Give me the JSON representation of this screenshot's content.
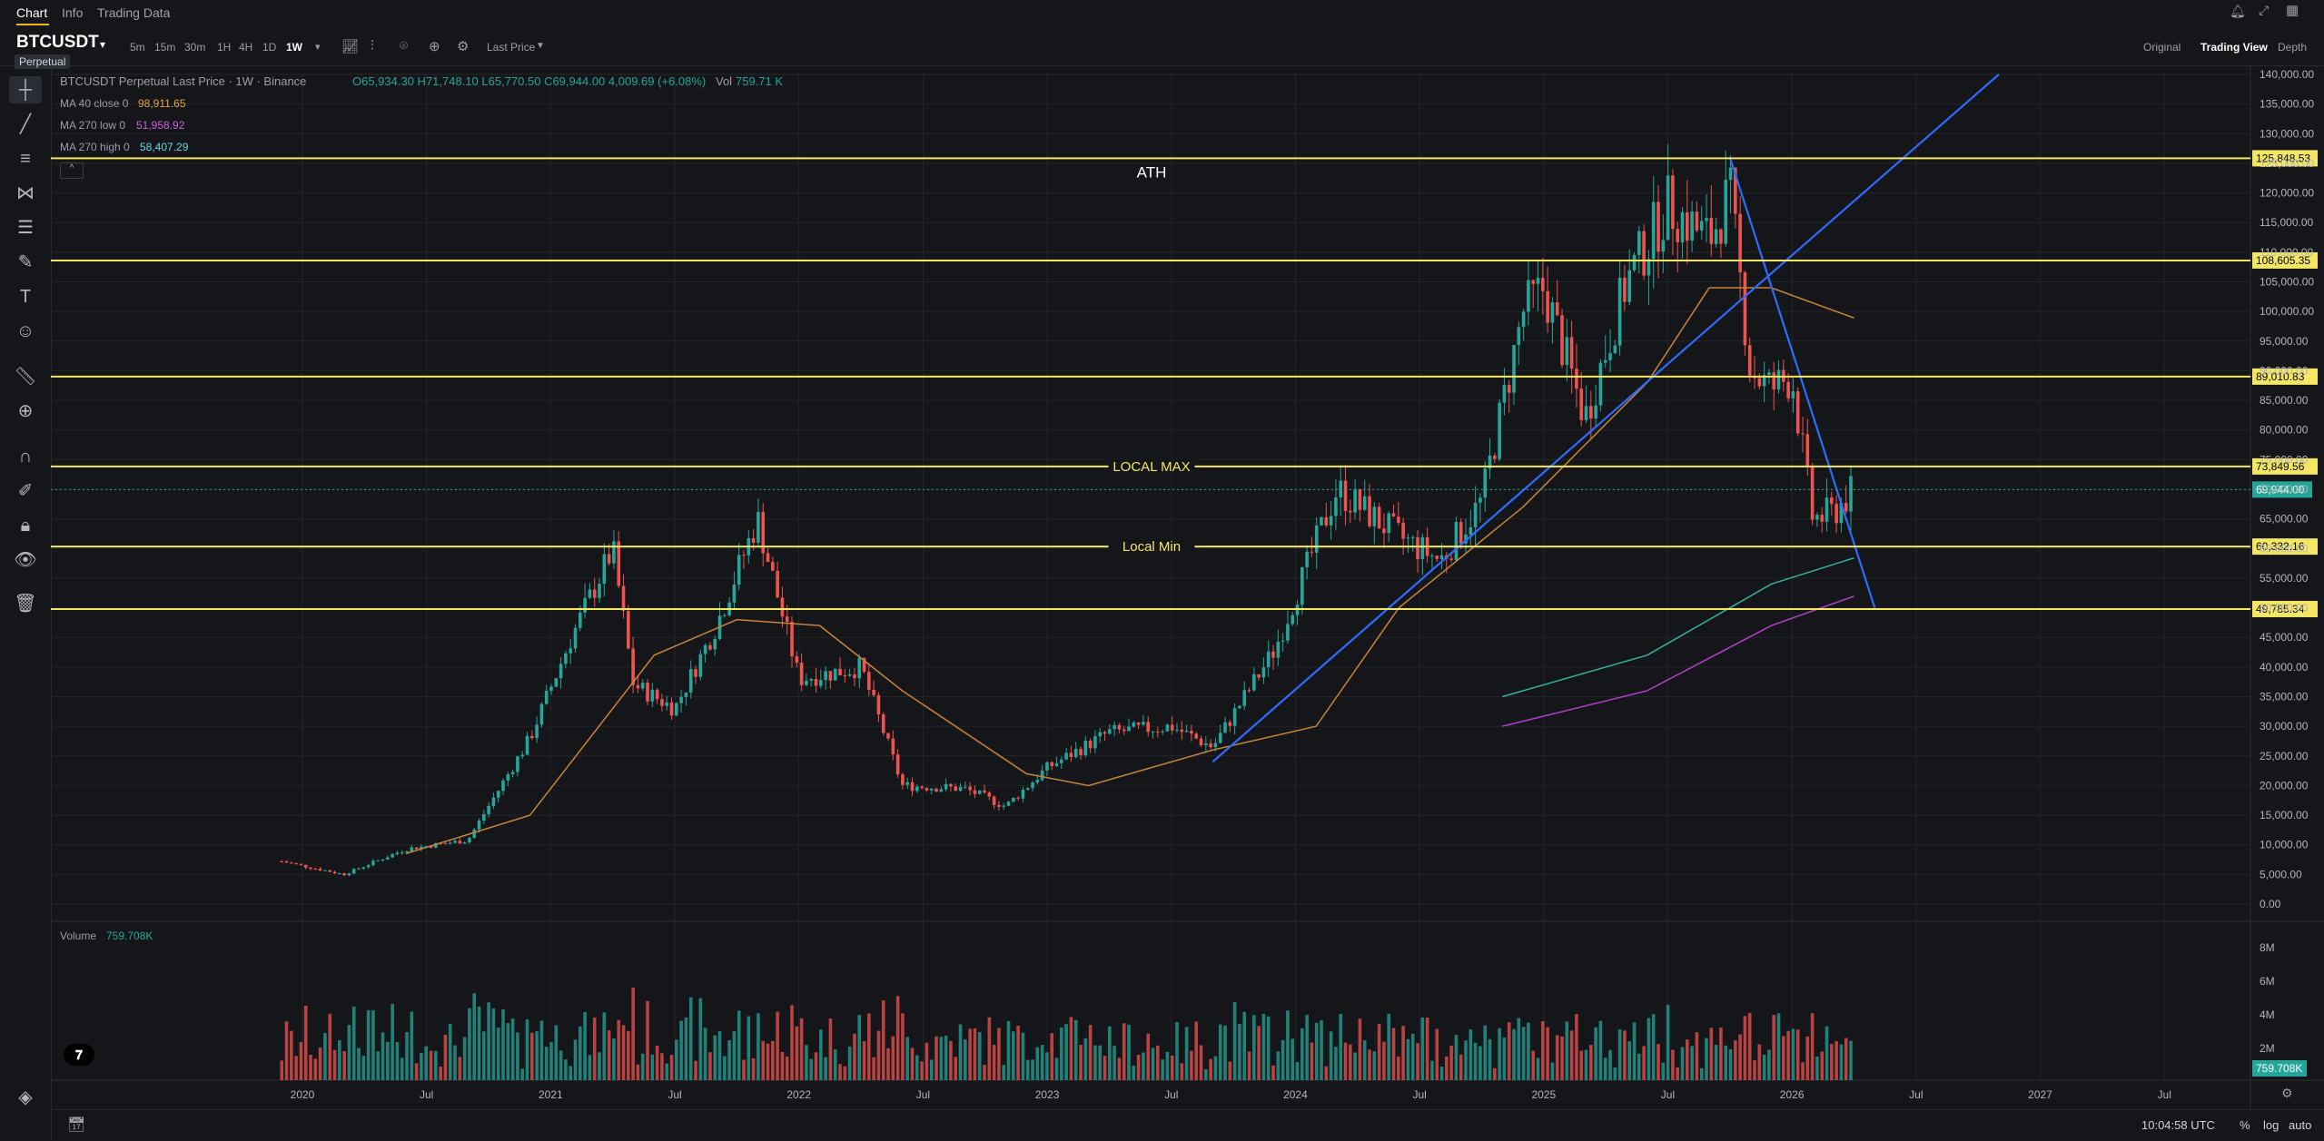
{
  "nav": {
    "tabs": [
      "Chart",
      "Info",
      "Trading Data"
    ]
  },
  "symbol": {
    "name": "BTCUSDT",
    "badge": "Perpetual"
  },
  "timeframes": [
    "5m",
    "15m",
    "30m",
    "1H",
    "4H",
    "1D",
    "1W"
  ],
  "active_timeframe": "1W",
  "price_type": "Last Price",
  "views": [
    "Original",
    "Trading View",
    "Depth"
  ],
  "legend": {
    "title": "BTCUSDT Perpetual Last Price · 1W · Binance",
    "ohlc": "O65,934.30 H71,748.10 L65,770.50 C69,944.00 4,009.69 (+6.08%)",
    "vol_label": "Vol",
    "vol_value": "759.71 K",
    "ma1_label": "MA 40 close 0",
    "ma1_value": "98,911.65",
    "ma2_label": "MA 270 low 0",
    "ma2_value": "51,958.92",
    "ma3_label": "MA 270 high 0",
    "ma3_value": "58,407.29",
    "volume_label": "Volume",
    "volume_value": "759.708K"
  },
  "colors": {
    "up": "#26a69a",
    "down": "#ef5350",
    "hline": "#f5e663",
    "trend": "#2f6bff",
    "ma40": "#c8843a",
    "ma270_high": "#34b3a0",
    "ma270_low": "#b040c8"
  },
  "chart_data": {
    "type": "candlestick",
    "y_ticks": [
      "0.00",
      "5,000.00",
      "10,000.00",
      "15,000.00",
      "20,000.00",
      "25,000.00",
      "30,000.00",
      "35,000.00",
      "40,000.00",
      "45,000.00",
      "50,000.00",
      "55,000.00",
      "60,000.00",
      "65,000.00",
      "70,000.00",
      "75,000.00",
      "80,000.00",
      "85,000.00",
      "90,000.00",
      "95,000.00",
      "100,000.00",
      "105,000.00",
      "110,000.00",
      "115,000.00",
      "120,000.00",
      "125,000.00",
      "130,000.00",
      "135,000.00",
      "140,000.00"
    ],
    "ylim": [
      0,
      140000
    ],
    "x_ticks": [
      "2020",
      "Jul",
      "2021",
      "Jul",
      "2022",
      "Jul",
      "2023",
      "Jul",
      "2024",
      "Jul",
      "2025",
      "Jul",
      "2026",
      "Jul",
      "2027",
      "Jul"
    ],
    "horizontal_levels": [
      {
        "price": 125848.53,
        "label": "125,848.53",
        "annotation": "ATH"
      },
      {
        "price": 108605.35,
        "label": "108,605.35",
        "annotation": ""
      },
      {
        "price": 89010.83,
        "label": "89,010.83",
        "annotation": ""
      },
      {
        "price": 73849.56,
        "label": "73,849.56",
        "annotation": "LOCAL MAX"
      },
      {
        "price": 60332.16,
        "label": "60,332.16",
        "annotation": "Local Min"
      },
      {
        "price": 49785.34,
        "label": "49,785.34",
        "annotation": ""
      }
    ],
    "last_price": {
      "price": 69944.0,
      "label": "69,944.00"
    },
    "close_path": [
      [
        "2019-12",
        7200
      ],
      [
        "2020-03",
        5000
      ],
      [
        "2020-06",
        9300
      ],
      [
        "2020-09",
        10800
      ],
      [
        "2020-12",
        28000
      ],
      [
        "2021-02",
        45000
      ],
      [
        "2021-04",
        60000
      ],
      [
        "2021-05",
        37000
      ],
      [
        "2021-07",
        33000
      ],
      [
        "2021-09",
        47000
      ],
      [
        "2021-11",
        65000
      ],
      [
        "2022-01",
        38000
      ],
      [
        "2022-04",
        40000
      ],
      [
        "2022-06",
        20000
      ],
      [
        "2022-09",
        19500
      ],
      [
        "2022-11",
        16500
      ],
      [
        "2023-01",
        23000
      ],
      [
        "2023-04",
        29000
      ],
      [
        "2023-07",
        30000
      ],
      [
        "2023-09",
        26500
      ],
      [
        "2023-12",
        43000
      ],
      [
        "2024-03",
        70000
      ],
      [
        "2024-06",
        62000
      ],
      [
        "2024-08",
        58000
      ],
      [
        "2024-10",
        68000
      ],
      [
        "2024-12",
        100000
      ],
      [
        "2025-01",
        104000
      ],
      [
        "2025-03",
        82000
      ],
      [
        "2025-05",
        105000
      ],
      [
        "2025-07",
        118000
      ],
      [
        "2025-09",
        112000
      ],
      [
        "2025-10",
        120000
      ],
      [
        "2025-11",
        90000
      ],
      [
        "2025-12",
        87000
      ],
      [
        "2026-01",
        89000
      ],
      [
        "2026-02",
        65000
      ],
      [
        "2026-03",
        66000
      ],
      [
        "2026-04",
        69944
      ]
    ],
    "ma40": [
      [
        "2020-06",
        8500
      ],
      [
        "2020-12",
        15000
      ],
      [
        "2021-06",
        42000
      ],
      [
        "2021-10",
        48000
      ],
      [
        "2022-02",
        47000
      ],
      [
        "2022-06",
        36000
      ],
      [
        "2022-12",
        22000
      ],
      [
        "2023-03",
        20000
      ],
      [
        "2023-09",
        26000
      ],
      [
        "2024-02",
        30000
      ],
      [
        "2024-06",
        50000
      ],
      [
        "2024-12",
        67000
      ],
      [
        "2025-06",
        88000
      ],
      [
        "2025-09",
        104000
      ],
      [
        "2025-12",
        104000
      ],
      [
        "2026-04",
        98911.65
      ]
    ],
    "ma270_high": [
      [
        "2024-11",
        35000
      ],
      [
        "2025-06",
        42000
      ],
      [
        "2025-12",
        54000
      ],
      [
        "2026-04",
        58407.29
      ]
    ],
    "ma270_low": [
      [
        "2024-11",
        30000
      ],
      [
        "2025-06",
        36000
      ],
      [
        "2025-12",
        47000
      ],
      [
        "2026-04",
        51958.92
      ]
    ],
    "trendlines": [
      {
        "from": [
          "2023-09",
          24000
        ],
        "to": [
          "2026-11",
          140000
        ]
      },
      {
        "from": [
          "2025-10",
          126000
        ],
        "to": [
          "2026-05",
          50000
        ]
      }
    ],
    "volume_ticks": [
      "2M",
      "4M",
      "6M",
      "8M"
    ],
    "volume_last": "759.708K"
  },
  "footer": {
    "time": "10:04:58 UTC",
    "pct": "%",
    "log": "log",
    "auto": "auto"
  }
}
